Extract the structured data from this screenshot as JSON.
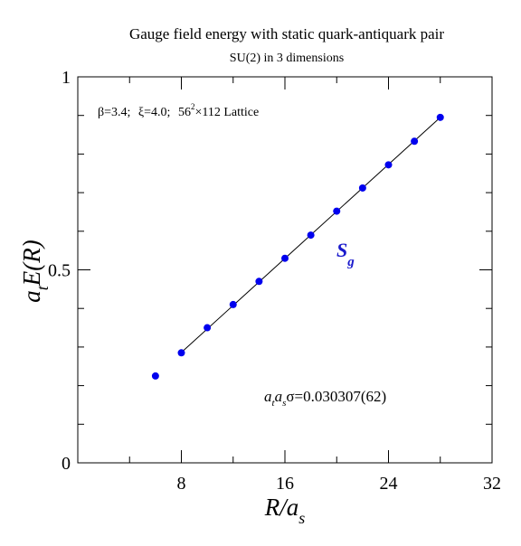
{
  "chart_data": {
    "type": "scatter",
    "title": "Gauge field energy with static quark-antiquark pair",
    "subtitle": "SU(2) in 3 dimensions",
    "annotation_params": {
      "beta": "β=3.4;",
      "xi": "ξ=4.0;",
      "lattice_base": "56",
      "lattice_exp": "2",
      "lattice_rest": "×112 Lattice"
    },
    "sigma_label": {
      "a_t": "a",
      "t_sub": "t",
      "a_s": "a",
      "s_sub": "s",
      "value": "σ=0.030307(62)"
    },
    "series_label": {
      "main": "S",
      "sub": "g"
    },
    "xlabel": {
      "main": "R/a",
      "sub": "s"
    },
    "ylabel": {
      "a": "a",
      "t_sub": "t",
      "rest": "E(R)"
    },
    "xlim": [
      0,
      32
    ],
    "ylim": [
      0,
      1
    ],
    "x_ticks": [
      "8",
      "16",
      "24",
      "32"
    ],
    "x_tick_values": [
      8,
      16,
      24,
      32
    ],
    "y_ticks": [
      "0",
      "0.5",
      "1"
    ],
    "y_tick_values": [
      0,
      0.5,
      1
    ],
    "x": [
      6,
      8,
      10,
      12,
      14,
      16,
      18,
      20,
      22,
      24,
      26,
      28
    ],
    "y": [
      0.225,
      0.285,
      0.35,
      0.41,
      0.47,
      0.53,
      0.59,
      0.652,
      0.712,
      0.772,
      0.833,
      0.895
    ],
    "fit_line": {
      "x": [
        8,
        28
      ],
      "y": [
        0.286,
        0.895
      ]
    },
    "colors": {
      "points": "#0000ee",
      "line": "#000000",
      "series_label": "#1a1acc"
    }
  }
}
